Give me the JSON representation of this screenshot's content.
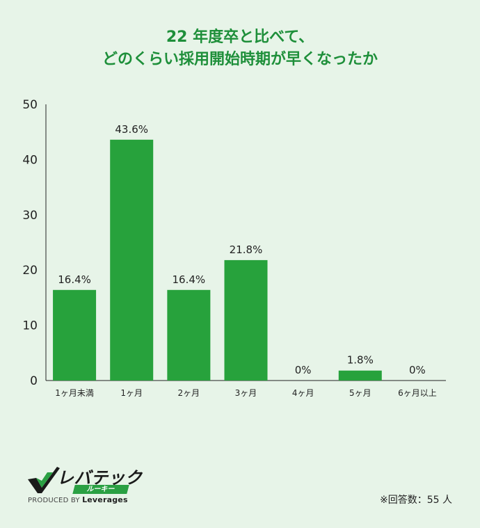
{
  "title": {
    "line1": "22 年度卒と比べて、",
    "line2": "どのくらい採用開始時期が早くなったか"
  },
  "chart_data": {
    "type": "bar",
    "categories": [
      "1ヶ月未満",
      "1ヶ月",
      "2ヶ月",
      "3ヶ月",
      "4ヶ月",
      "5ヶ月",
      "6ヶ月以上"
    ],
    "values": [
      16.4,
      43.6,
      16.4,
      21.8,
      0,
      1.8,
      0
    ],
    "data_labels": [
      "16.4%",
      "43.6%",
      "16.4%",
      "21.8%",
      "0%",
      "1.8%",
      "0%"
    ],
    "title": "",
    "xlabel": "",
    "ylabel": "",
    "ylim": [
      0,
      50
    ],
    "yticks": [
      0,
      10,
      20,
      30,
      40,
      50
    ],
    "grid": false,
    "bar_color": "#27a23c"
  },
  "logo": {
    "name": "レバテック",
    "sub": "ルーキー",
    "produced_by": "PRODUCED BY",
    "brand": "Leverages"
  },
  "note": "※回答数：55 人"
}
